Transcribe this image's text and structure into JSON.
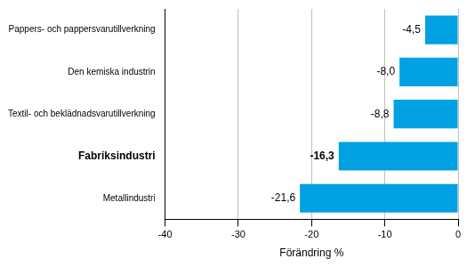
{
  "chart_data": {
    "type": "bar",
    "orientation": "horizontal",
    "categories": [
      "Pappers- och pappersvarutillverkning",
      "Den kemiska industrin",
      "Textil- och beklädnadsvarutillverkning",
      "Fabriksindustri",
      "Metallindustri"
    ],
    "values": [
      -4.5,
      -8.0,
      -8.8,
      -16.3,
      -21.6
    ],
    "value_labels": [
      "-4,5",
      "-8,0",
      "-8,8",
      "-16,3",
      "-21,6"
    ],
    "data_labels": true,
    "color": "#00a0e3",
    "x_label": "Förändring %",
    "xlim": [
      -40,
      0
    ],
    "xticks": [
      -40,
      -30,
      -20,
      -10,
      0
    ],
    "grid": true
  }
}
